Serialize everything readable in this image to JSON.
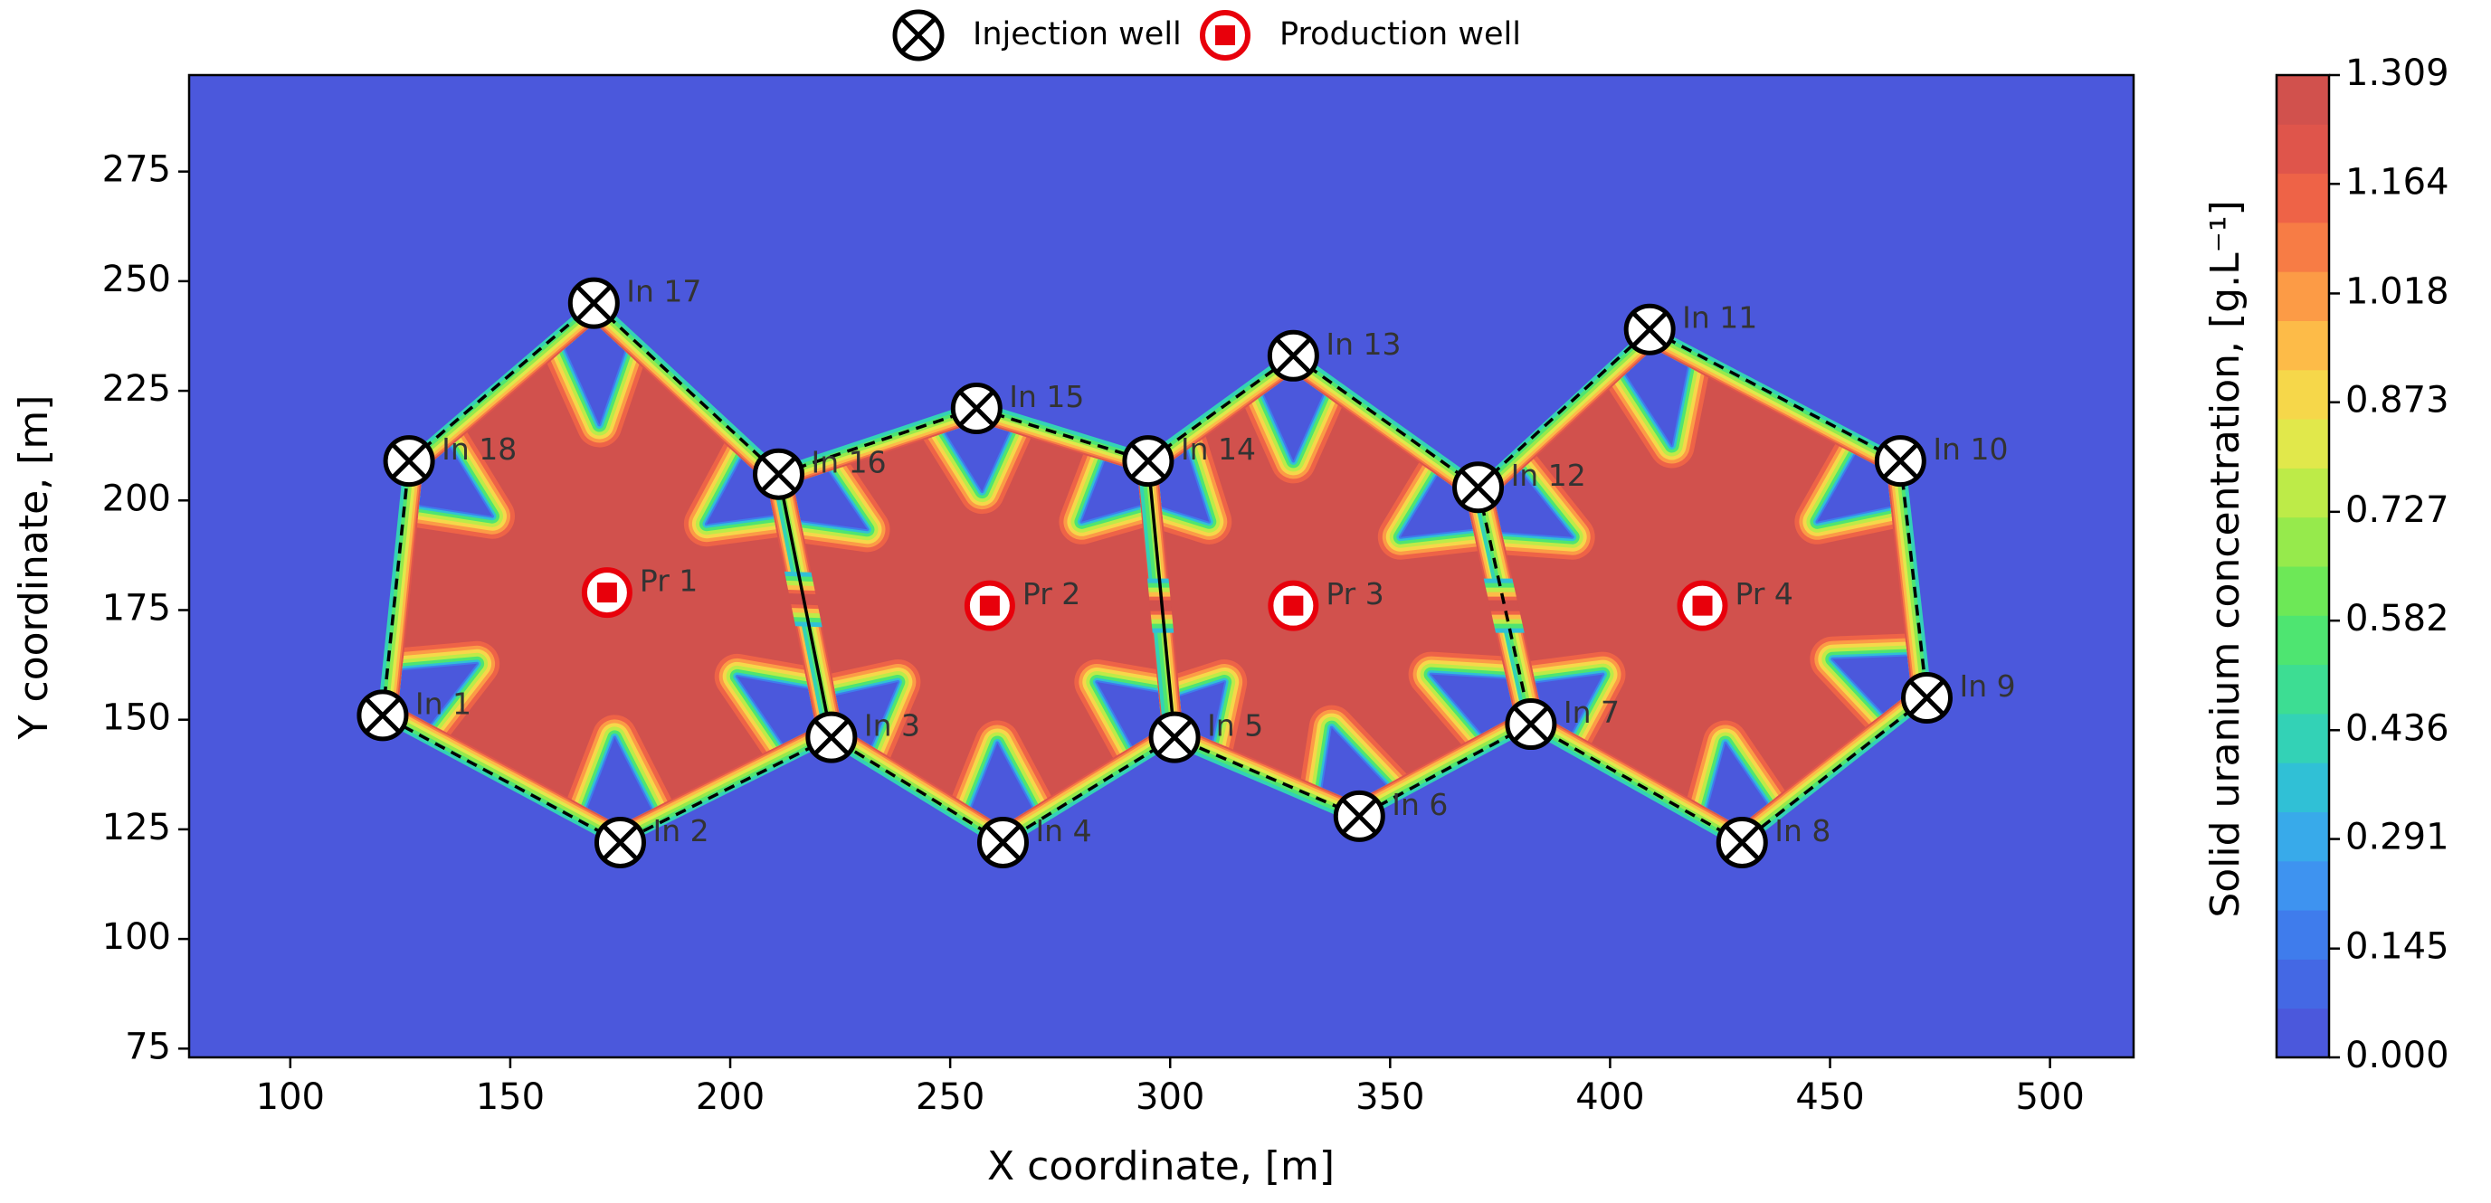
{
  "chart_data": {
    "type": "contour",
    "xlabel": "X coordinate, [m]",
    "ylabel": "Y coordinate, [m]",
    "xlim": [
      77,
      519
    ],
    "ylim": [
      73,
      297
    ],
    "xticks": [
      100,
      150,
      200,
      250,
      300,
      350,
      400,
      450,
      500
    ],
    "yticks": [
      75,
      100,
      125,
      150,
      175,
      200,
      225,
      250,
      275
    ],
    "background": "#4b58dc",
    "series": [
      {
        "name": "Injection well",
        "color": "#000000",
        "labels": [
          "In 1",
          "In 2",
          "In 3",
          "In 4",
          "In 5",
          "In 6",
          "In 7",
          "In 8",
          "In 9",
          "In 10",
          "In 11",
          "In 12",
          "In 13",
          "In 14",
          "In 15",
          "In 16",
          "In 17",
          "In 18"
        ],
        "x": [
          121,
          175,
          223,
          262,
          301,
          343,
          382,
          430,
          472,
          466,
          409,
          370,
          328,
          295,
          256,
          211,
          169,
          127
        ],
        "y": [
          151,
          122,
          146,
          122,
          146,
          128,
          149,
          122,
          155,
          209,
          239,
          203,
          233,
          209,
          221,
          206,
          245,
          209
        ]
      },
      {
        "name": "Production well",
        "color": "#e8000b",
        "labels": [
          "Pr 1",
          "Pr 2",
          "Pr 3",
          "Pr 4"
        ],
        "x": [
          172,
          259,
          328,
          421
        ],
        "y": [
          179,
          176,
          176,
          176
        ]
      }
    ],
    "colorbar": {
      "label": "Solid uranium concentration, [g.L⁻¹]",
      "lim": [
        0,
        1.309
      ],
      "ticks": [
        {
          "value": 0,
          "label": "0.000"
        },
        0.145,
        0.291,
        0.436,
        0.582,
        0.727,
        0.873,
        1.018,
        1.164,
        1.309
      ],
      "colors": [
        "#4b58dc",
        "#4468e4",
        "#3f7cec",
        "#3e93f0",
        "#38aaea",
        "#30c0d6",
        "#33d2b6",
        "#3ddd93",
        "#4ee571",
        "#6de857",
        "#96ea4c",
        "#bdeb48",
        "#e1e84b",
        "#f6d74a",
        "#fdbb48",
        "#fc9b46",
        "#f77c45",
        "#ee6347",
        "#df554b",
        "#d1514d"
      ]
    }
  }
}
